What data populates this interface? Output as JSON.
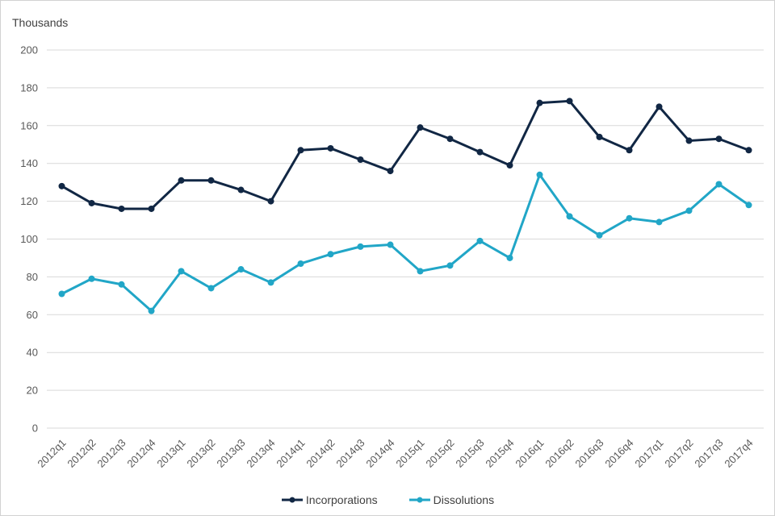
{
  "figure": {
    "axis_title": "Thousands",
    "background": "#ffffff",
    "border_color": "#d2d2d2",
    "gridline_color": "#d9d9d9",
    "tick_label_color": "#595959",
    "text_color": "#404040"
  },
  "legend": {
    "items": [
      {
        "label": "Incorporations",
        "color": "#112744"
      },
      {
        "label": "Dissolutions",
        "color": "#21a6c7"
      }
    ]
  },
  "chart_data": {
    "type": "line",
    "title": "",
    "xlabel": "",
    "ylabel": "Thousands",
    "ylim": [
      0,
      200
    ],
    "ytick_step": 20,
    "grid": true,
    "legend_position": "bottom",
    "x_label_rotation": -45,
    "categories": [
      "2012q1",
      "2012q2",
      "2012q3",
      "2012q4",
      "2013q1",
      "2013q2",
      "2013q3",
      "2013q4",
      "2014q1",
      "2014q2",
      "2014q3",
      "2014q4",
      "2015q1",
      "2015q2",
      "2015q3",
      "2015q4",
      "2016q1",
      "2016q2",
      "2016q3",
      "2016q4",
      "2017q1",
      "2017q2",
      "2017q3",
      "2017q4"
    ],
    "series": [
      {
        "name": "Incorporations",
        "color": "#112744",
        "marker": "circle",
        "values": [
          128,
          119,
          116,
          116,
          131,
          131,
          126,
          120,
          147,
          148,
          142,
          136,
          159,
          153,
          146,
          139,
          172,
          173,
          154,
          147,
          170,
          152,
          153,
          147
        ]
      },
      {
        "name": "Dissolutions",
        "color": "#21a6c7",
        "marker": "circle",
        "values": [
          71,
          79,
          76,
          62,
          83,
          74,
          84,
          77,
          87,
          92,
          96,
          97,
          83,
          86,
          99,
          90,
          134,
          112,
          102,
          111,
          109,
          115,
          129,
          118
        ]
      }
    ]
  }
}
